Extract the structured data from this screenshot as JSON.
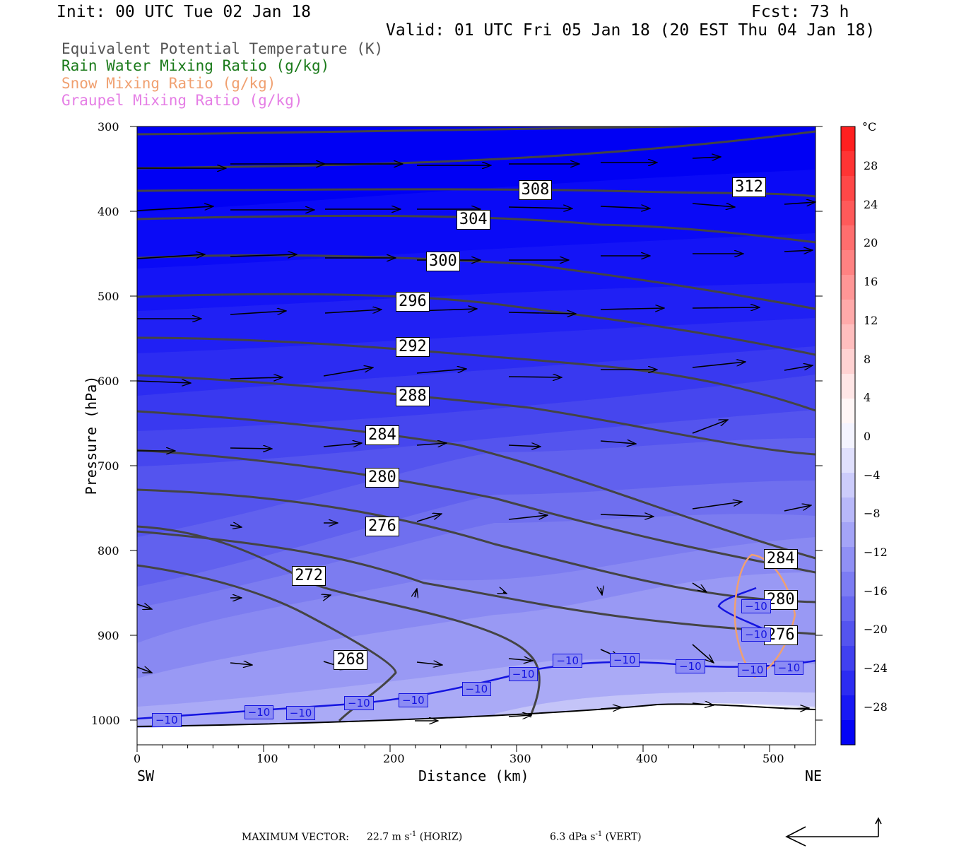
{
  "header": {
    "init_line": "Init: 00 UTC Tue 02 Jan 18",
    "fcst_line": "Fcst:   73 h",
    "valid_line": "Valid: 01 UTC Fri 05 Jan 18 (20 EST Thu 04 Jan 18)"
  },
  "legend": [
    {
      "text": "Equivalent Potential Temperature (K)",
      "color": "#555555"
    },
    {
      "text": "Rain Water Mixing Ratio (g/kg)",
      "color": "#1a7a1a"
    },
    {
      "text": "Snow Mixing Ratio (g/kg)",
      "color": "#f0a070"
    },
    {
      "text": "Graupel Mixing Ratio (g/kg)",
      "color": "#e57ee5"
    }
  ],
  "axes": {
    "ylabel": "Pressure (hPa)",
    "xlabel": "Distance (km)",
    "x_left_label": "SW",
    "x_right_label": "NE",
    "y_ticks": [
      "300",
      "400",
      "500",
      "600",
      "700",
      "800",
      "900",
      "1000"
    ],
    "x_ticks": [
      "0",
      "100",
      "200",
      "300",
      "400",
      "500"
    ]
  },
  "colorbar": {
    "unit": "°C",
    "labels": [
      "28",
      "24",
      "20",
      "16",
      "12",
      "8",
      "4",
      "0",
      "−4",
      "−8",
      "−12",
      "−16",
      "−20",
      "−24",
      "−28"
    ]
  },
  "footer": {
    "max_vector_label": "MAXIMUM VECTOR:",
    "horiz_value": "22.7 m s",
    "horiz_exp": "-1",
    "horiz_tag": "(HORIZ)",
    "vert_value": "6.3 dPa s",
    "vert_exp": "-1",
    "vert_tag": "(VERT)"
  },
  "chart_data": {
    "type": "cross-section contour",
    "x_range_km": [
      0,
      535
    ],
    "y_range_hpa": [
      300,
      1030
    ],
    "theta_e_contours": [
      {
        "label": "312",
        "label_at": [
          485,
          372
        ]
      },
      {
        "label": "308",
        "label_at": [
          316,
          375
        ]
      },
      {
        "label": "304",
        "label_at": [
          267,
          410
        ]
      },
      {
        "label": "300",
        "label_at": [
          243,
          459
        ]
      },
      {
        "label": "296",
        "label_at": [
          219,
          507
        ]
      },
      {
        "label": "292",
        "label_at": [
          219,
          560
        ]
      },
      {
        "label": "288",
        "label_at": [
          219,
          618
        ]
      },
      {
        "label": "284",
        "label_at": [
          195,
          664
        ]
      },
      {
        "label": "280",
        "label_at": [
          195,
          714
        ]
      },
      {
        "label": "276",
        "label_at": [
          195,
          772
        ]
      },
      {
        "label": "272",
        "label_at": [
          137,
          830
        ]
      },
      {
        "label": "268",
        "label_at": [
          170,
          929
        ]
      },
      {
        "label": "284",
        "label_at": [
          510,
          810
        ]
      },
      {
        "label": "280",
        "label_at": [
          510,
          858
        ]
      },
      {
        "label": "276",
        "label_at": [
          510,
          900
        ]
      }
    ],
    "temperature_minus10_labels": [
      {
        "label": "−10",
        "at": [
          24,
          1000
        ]
      },
      {
        "label": "−10",
        "at": [
          97,
          991
        ]
      },
      {
        "label": "−10",
        "at": [
          130,
          992
        ]
      },
      {
        "label": "−10",
        "at": [
          176,
          980
        ]
      },
      {
        "label": "−10",
        "at": [
          219,
          977
        ]
      },
      {
        "label": "−10",
        "at": [
          269,
          963
        ]
      },
      {
        "label": "−10",
        "at": [
          306,
          946
        ]
      },
      {
        "label": "−10",
        "at": [
          341,
          930
        ]
      },
      {
        "label": "−10",
        "at": [
          386,
          929
        ]
      },
      {
        "label": "−10",
        "at": [
          438,
          937
        ]
      },
      {
        "label": "−10",
        "at": [
          487,
          941
        ]
      },
      {
        "label": "−10",
        "at": [
          516,
          938
        ]
      },
      {
        "label": "−10",
        "at": [
          490,
          866
        ]
      },
      {
        "label": "−10",
        "at": [
          490,
          899
        ]
      }
    ]
  }
}
